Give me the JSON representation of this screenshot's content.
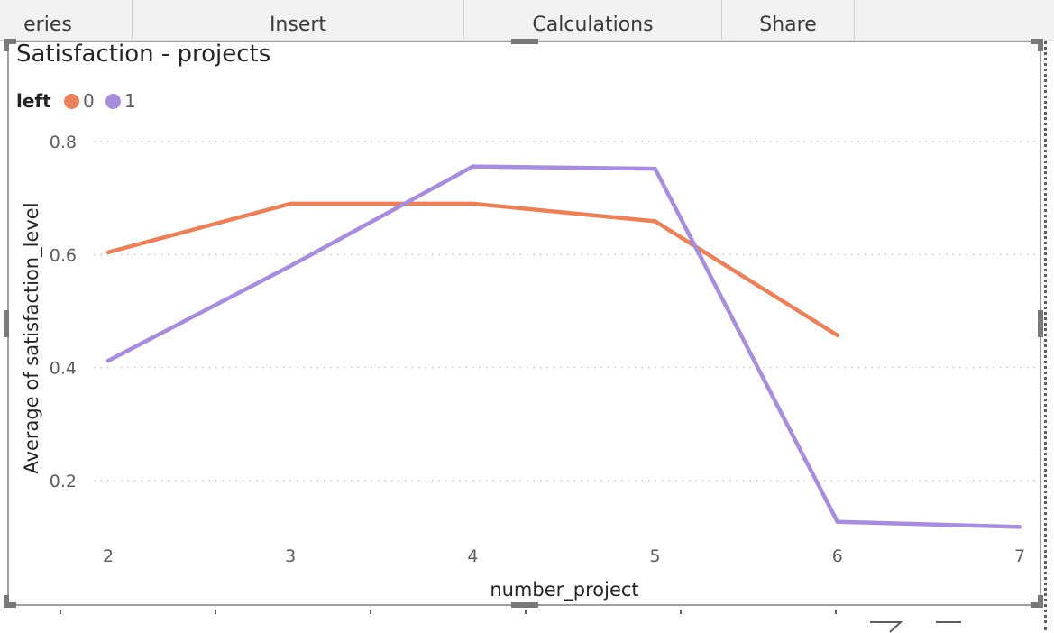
{
  "ribbon": {
    "tabs": [
      {
        "label": "eries"
      },
      {
        "label": "Insert"
      },
      {
        "label": "Calculations"
      },
      {
        "label": "Share"
      }
    ]
  },
  "chart_title": "Satisfaction - projects",
  "legend": {
    "title": "left",
    "items": [
      {
        "label": "0",
        "color": "#E8825C"
      },
      {
        "label": "1",
        "color": "#A88DDB"
      }
    ]
  },
  "chart_data": {
    "type": "line",
    "title": "Satisfaction - projects",
    "xlabel": "number_project",
    "ylabel": "Average of satisfaction_level",
    "x": [
      2,
      3,
      4,
      5,
      6,
      7
    ],
    "x_ticks": [
      "2",
      "3",
      "4",
      "5",
      "6",
      "7"
    ],
    "y_ticks": [
      "0.2",
      "0.4",
      "0.6",
      "0.8"
    ],
    "ylim": [
      0.08,
      0.82
    ],
    "grid": true,
    "legend_position": "top-left",
    "series": [
      {
        "name": "0",
        "color": "#E8825C",
        "values": [
          0.604,
          0.69,
          0.69,
          0.659,
          0.457,
          null
        ]
      },
      {
        "name": "1",
        "color": "#A88DDB",
        "values": [
          0.412,
          0.58,
          0.756,
          0.752,
          0.127,
          0.118
        ]
      }
    ]
  }
}
